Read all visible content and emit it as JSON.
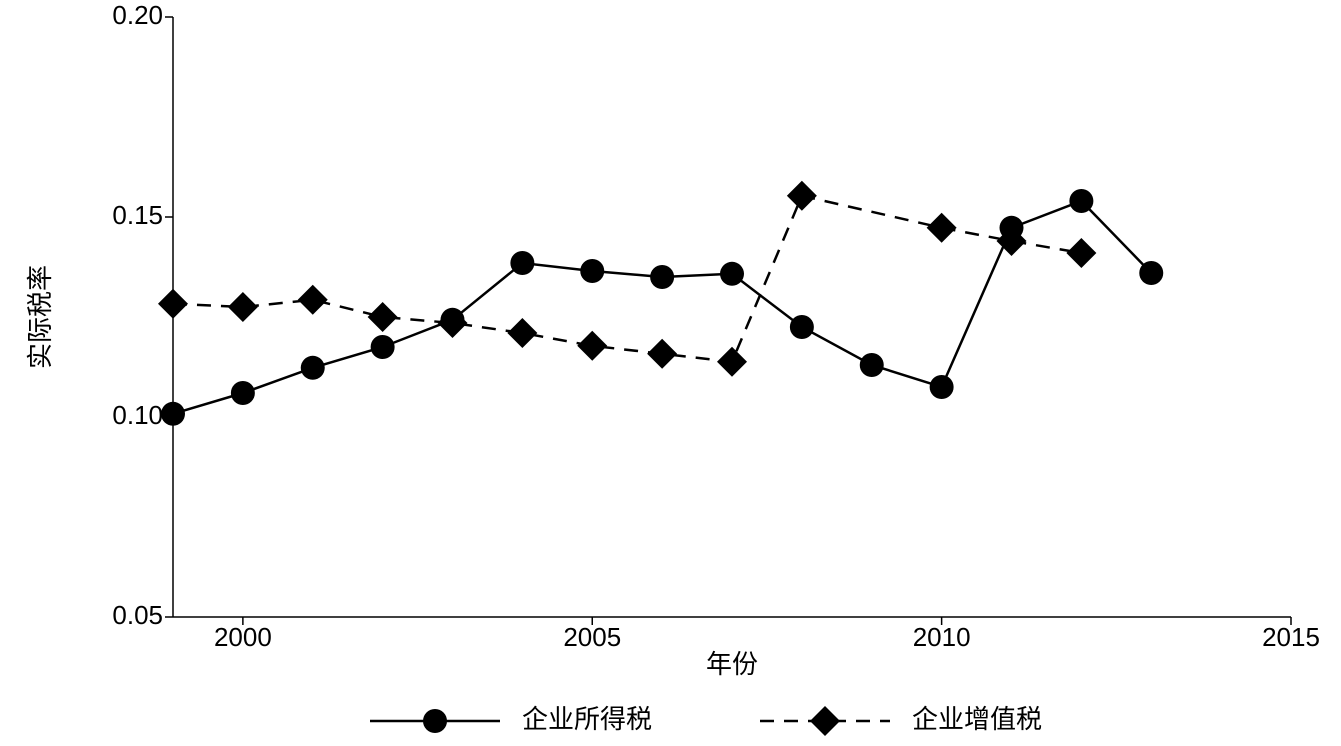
{
  "chart_data": {
    "type": "line",
    "x_label": "年份",
    "y_label": "实际税率",
    "xlim": [
      1999,
      2015
    ],
    "xticks": [
      2000,
      2005,
      2010,
      2015
    ],
    "ylim": [
      0.05,
      0.2
    ],
    "yticks": [
      {
        "value": 0.05,
        "label": "0.05"
      },
      {
        "value": 0.1,
        "label": "0.10"
      },
      0.15,
      {
        "value": 0.2,
        "label": "0.20"
      }
    ],
    "legend": "bottom",
    "series": [
      {
        "name": "企业所得税",
        "color": "#000000",
        "marker": "circle",
        "dash": "solid",
        "x": [
          1999,
          2000,
          2001,
          2002,
          2003,
          2004,
          2005,
          2006,
          2007,
          2008,
          2009,
          2010,
          2011,
          2012,
          2013
        ],
        "values": [
          0.1008,
          0.106,
          0.1123,
          0.1175,
          0.1243,
          0.1385,
          0.1365,
          0.135,
          0.1358,
          0.1225,
          0.113,
          0.1075,
          0.1473,
          0.154,
          0.136
        ]
      },
      {
        "name": "企业增值税",
        "color": "#000000",
        "marker": "diamond",
        "dash": "dashed",
        "x": [
          1999,
          2000,
          2001,
          2002,
          2003,
          2004,
          2005,
          2006,
          2007,
          2008,
          2010,
          2011,
          2012
        ],
        "values": [
          0.1283,
          0.1275,
          0.1293,
          0.125,
          0.1235,
          0.121,
          0.1178,
          0.1158,
          0.1138,
          0.1553,
          0.1473,
          0.144,
          0.141
        ]
      }
    ]
  }
}
